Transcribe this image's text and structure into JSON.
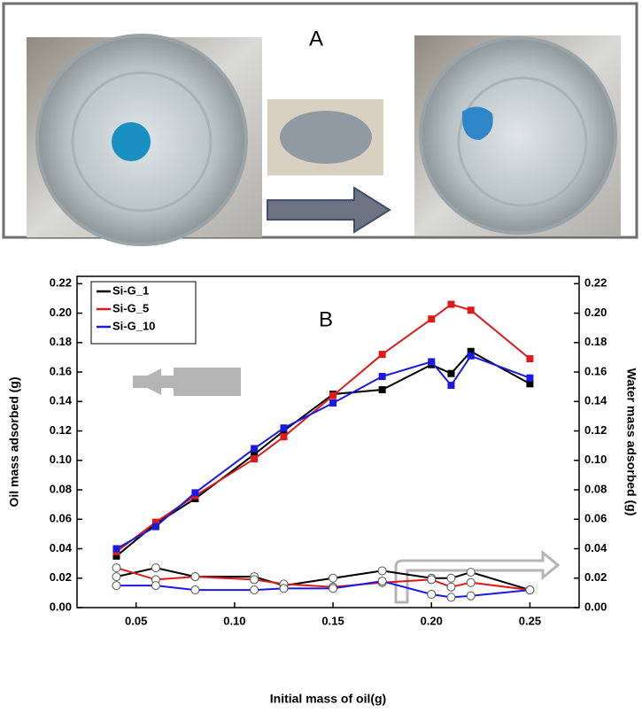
{
  "panel_a_label": "A",
  "chart_data": {
    "type": "line",
    "panel_label": "B",
    "x_label": "Initial mass of oil(g)",
    "y_label": "Oil mass adsorbed (g)",
    "y2_label": "Water mass adsorbed (g)",
    "x": [
      0.04,
      0.06,
      0.08,
      0.11,
      0.125,
      0.15,
      0.175,
      0.2,
      0.21,
      0.22,
      0.25
    ],
    "series": [
      {
        "name": "Si-G_1",
        "color": "#000000",
        "marker": "square",
        "values": [
          0.035,
          0.057,
          0.074,
          0.104,
          0.12,
          0.145,
          0.148,
          0.165,
          0.159,
          0.174,
          0.152
        ]
      },
      {
        "name": "Si-G_5",
        "color": "#e01a1a",
        "marker": "square",
        "values": [
          0.038,
          0.058,
          0.076,
          0.101,
          0.116,
          0.144,
          0.172,
          0.196,
          0.206,
          0.202,
          0.169
        ]
      },
      {
        "name": "Si-G_10",
        "color": "#1a1ae0",
        "marker": "square",
        "values": [
          0.04,
          0.055,
          0.078,
          0.108,
          0.122,
          0.139,
          0.157,
          0.167,
          0.151,
          0.171,
          0.156
        ]
      },
      {
        "color": "#000000",
        "marker": "circle",
        "axis": "y2",
        "values": [
          0.021,
          0.027,
          0.021,
          0.021,
          0.015,
          0.02,
          0.025,
          0.02,
          0.02,
          0.024,
          0.012
        ]
      },
      {
        "color": "#e01a1a",
        "marker": "circle",
        "axis": "y2",
        "values": [
          0.027,
          0.019,
          0.021,
          0.019,
          0.016,
          0.014,
          0.017,
          0.019,
          0.014,
          0.017,
          0.012
        ]
      },
      {
        "color": "#1a1ae0",
        "marker": "circle",
        "axis": "y2",
        "values": [
          0.015,
          0.015,
          0.012,
          0.012,
          0.013,
          0.013,
          0.018,
          0.009,
          0.007,
          0.008,
          0.012
        ]
      }
    ],
    "xlim": [
      0.02,
      0.275
    ],
    "xticks": [
      0.05,
      {
        "value": 0.1,
        "label": "0.10"
      },
      0.15,
      {
        "value": 0.2,
        "label": "0.20"
      },
      0.25
    ],
    "ylim": [
      0,
      0.225
    ],
    "yticks": [
      {
        "value": 0,
        "label": "0.00"
      },
      0.02,
      0.04,
      0.06,
      0.08,
      {
        "value": 0.1,
        "label": "0.10"
      },
      0.12,
      0.14,
      0.16,
      0.18,
      {
        "value": 0.2,
        "label": "0.20"
      },
      0.22
    ],
    "y2lim": [
      0,
      0.225
    ],
    "y2ticks": [
      {
        "value": 0,
        "label": "0.00"
      },
      0.02,
      0.04,
      0.06,
      0.08,
      {
        "value": 0.1,
        "label": "0.10"
      },
      0.12,
      0.14,
      0.16,
      0.18,
      {
        "value": 0.2,
        "label": "0.20"
      },
      0.22
    ],
    "legend": "top-left"
  }
}
